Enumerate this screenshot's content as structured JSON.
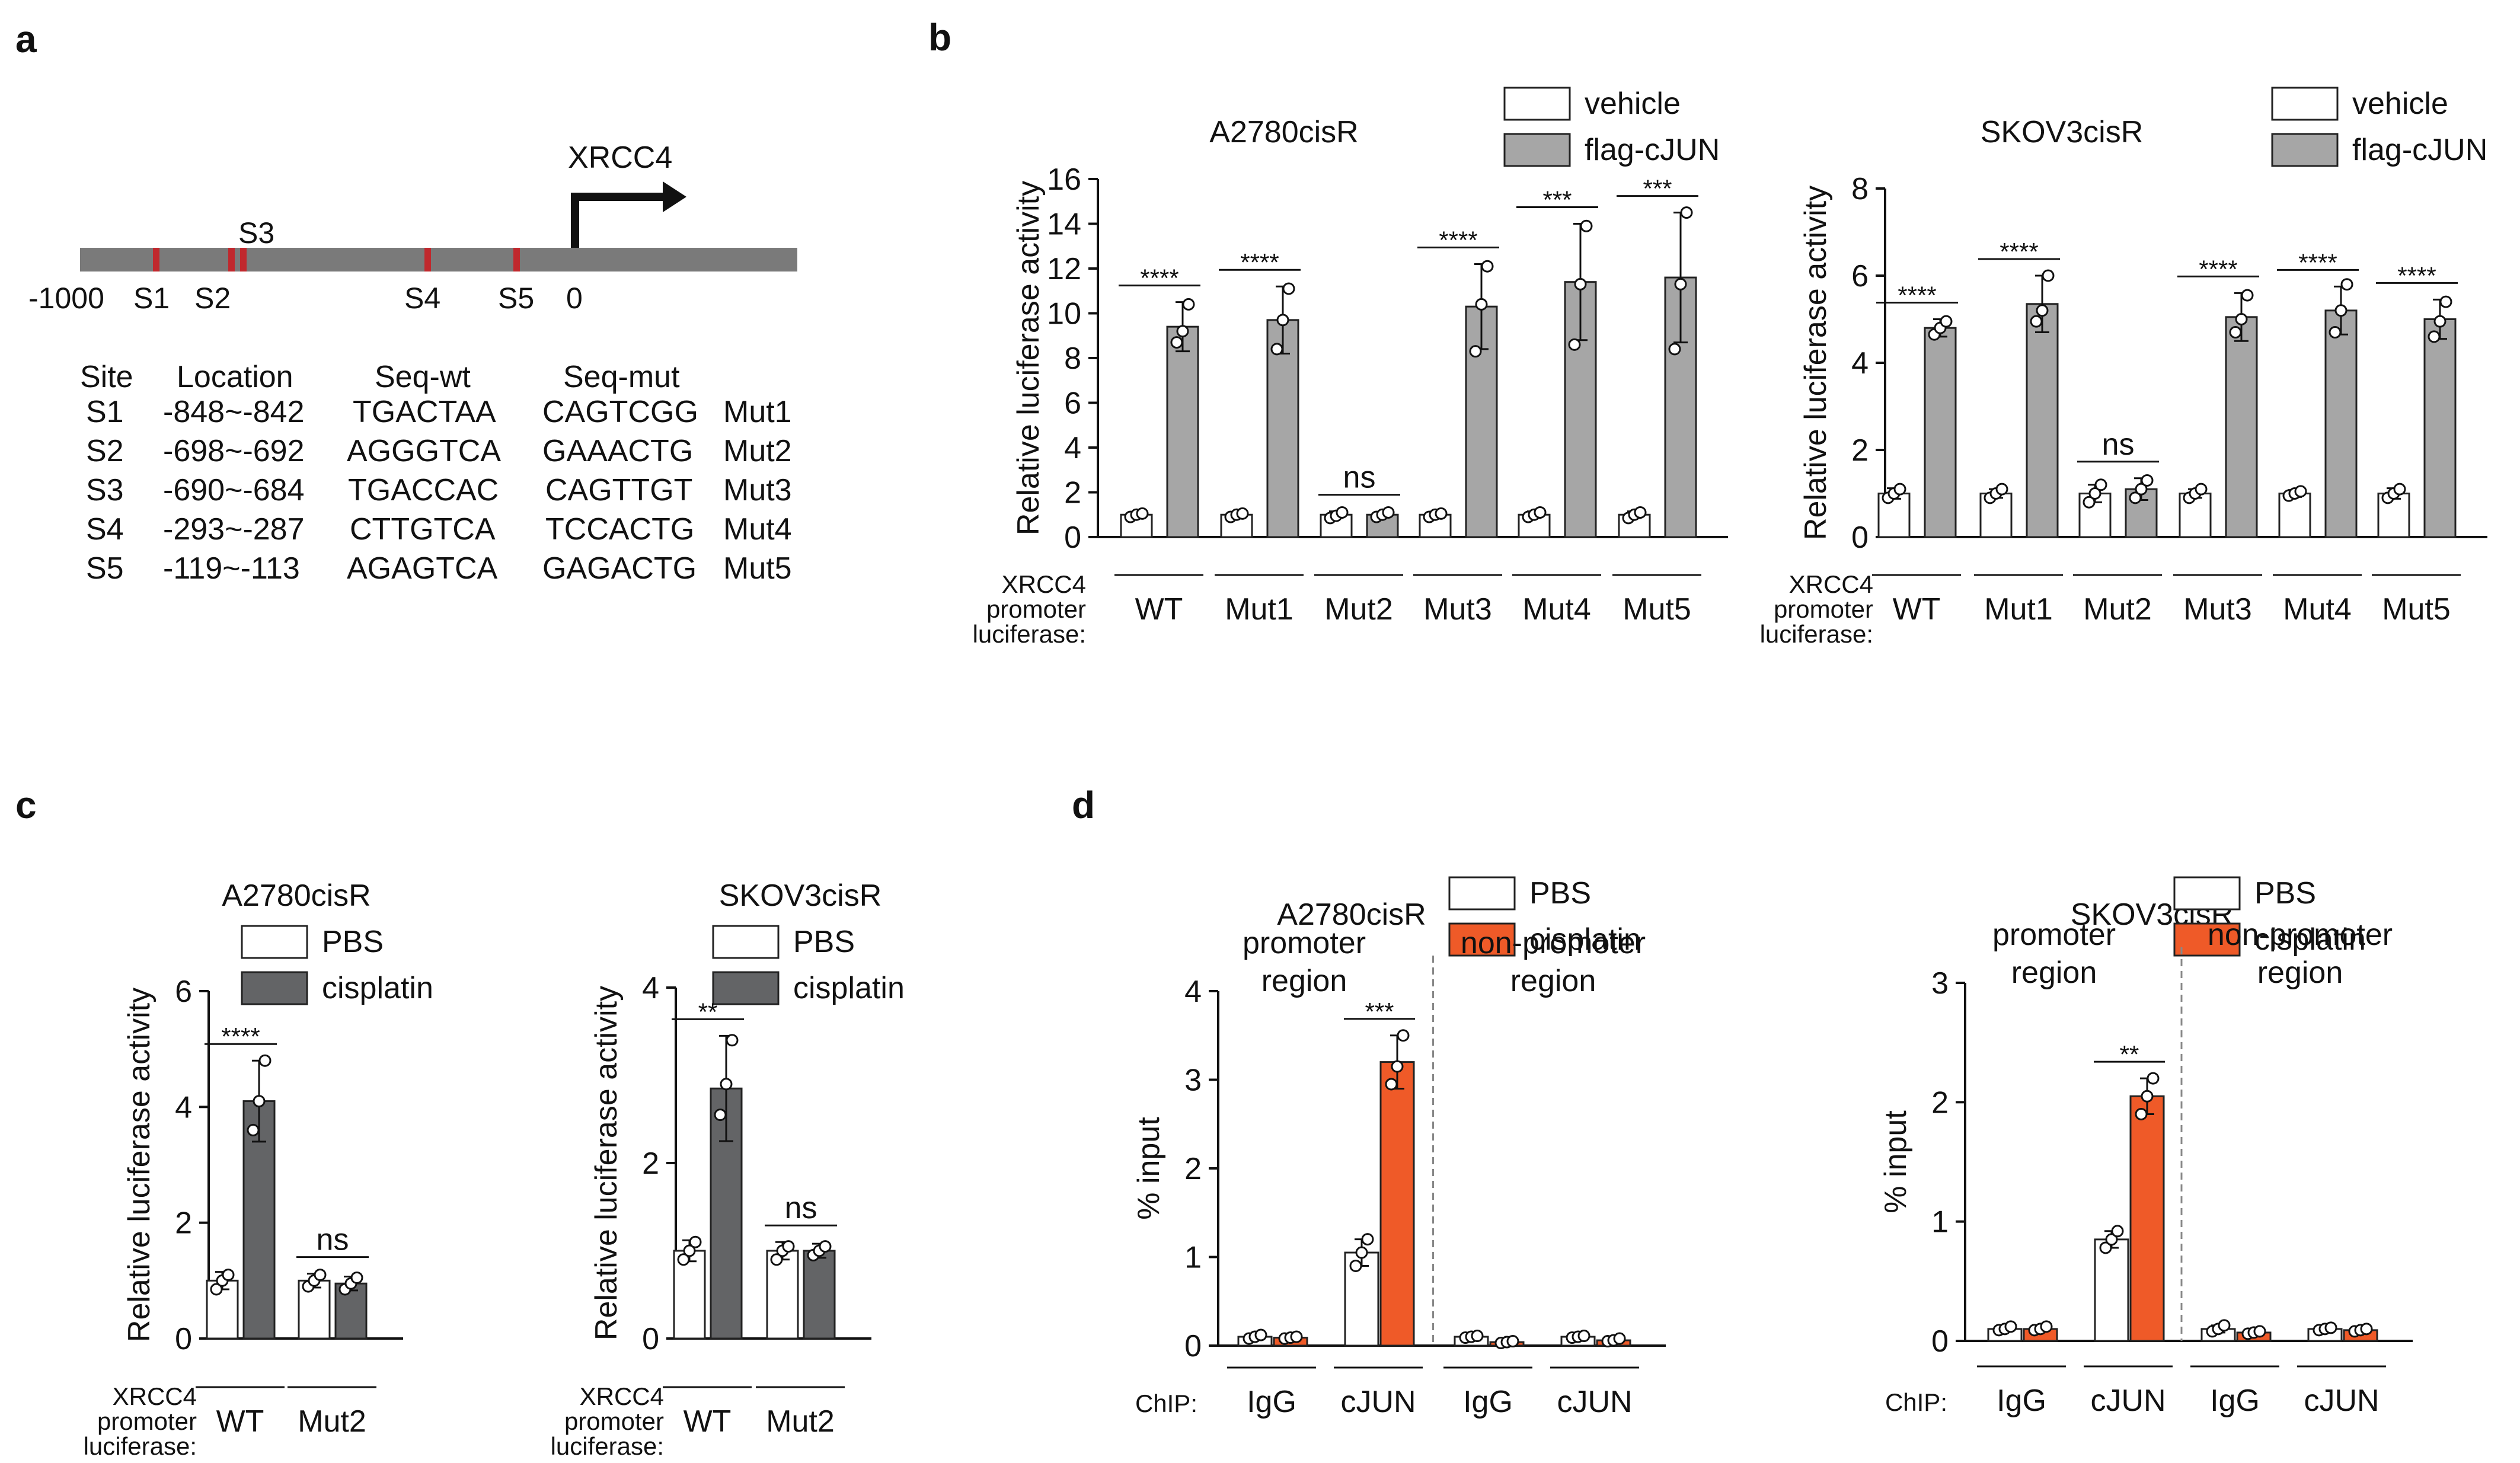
{
  "colors": {
    "promoter_bar": "#7a7a7a",
    "site_mark": "#c0282d",
    "mut_text": "#c0282d",
    "vehicle": "#ffffff",
    "flag": "#a6a6a6",
    "pbs": "#ffffff",
    "cisplatin_c": "#636466",
    "cisplatin_d": "#ef5a28",
    "outline": "#222222",
    "divider": "#888888"
  },
  "panel_a": {
    "letter": "a",
    "gene": "XRCC4",
    "axis_labels": [
      "-1000",
      "S1",
      "S2",
      "S3",
      "S4",
      "S5",
      "0"
    ],
    "table": {
      "headers": [
        "Site",
        "Location",
        "Seq-wt",
        "Seq-mut"
      ],
      "rows": [
        {
          "site": "S1",
          "location": "-848~-842",
          "wt": "TGACTAA",
          "mut": "CAGTCGG",
          "label": "Mut1"
        },
        {
          "site": "S2",
          "location": "-698~-692",
          "wt": "AGGGTCA",
          "mut": "GAAACTG",
          "label": "Mut2"
        },
        {
          "site": "S3",
          "location": "-690~-684",
          "wt": "TGACCAC",
          "mut": "CAGTTGT",
          "label": "Mut3"
        },
        {
          "site": "S4",
          "location": "-293~-287",
          "wt": "CTTGTCA",
          "mut": "TCCACTG",
          "label": "Mut4"
        },
        {
          "site": "S5",
          "location": "-119~-113",
          "wt": "AGAGTCA",
          "mut": "GAGACTG",
          "label": "Mut5"
        }
      ]
    }
  },
  "chart_data": [
    {
      "id": "b1",
      "panel": "b",
      "type": "bar",
      "title": "A2780cisR",
      "ylabel": "Relative luciferase activity",
      "ylim": [
        0,
        16
      ],
      "yticks": [
        0,
        2,
        4,
        6,
        8,
        10,
        12,
        14,
        16
      ],
      "row_label": [
        "XRCC4",
        "promoter",
        "luciferase:"
      ],
      "categories": [
        "WT",
        "Mut1",
        "Mut2",
        "Mut3",
        "Mut4",
        "Mut5"
      ],
      "series": [
        {
          "name": "vehicle",
          "values": [
            1.0,
            1.0,
            1.0,
            1.0,
            1.0,
            1.0
          ],
          "errors": [
            0.1,
            0.1,
            0.15,
            0.1,
            0.15,
            0.15
          ],
          "points": [
            [
              0.9,
              1.0,
              1.05
            ],
            [
              0.9,
              1.0,
              1.05
            ],
            [
              0.85,
              0.95,
              1.1
            ],
            [
              0.9,
              1.0,
              1.05
            ],
            [
              0.9,
              1.0,
              1.1
            ],
            [
              0.85,
              1.0,
              1.1
            ]
          ]
        },
        {
          "name": "flag-cJUN",
          "values": [
            9.4,
            9.7,
            1.0,
            10.3,
            11.4,
            11.6
          ],
          "errors": [
            1.1,
            1.5,
            0.12,
            1.9,
            2.6,
            2.9
          ],
          "points": [
            [
              8.7,
              9.2,
              10.4
            ],
            [
              8.4,
              9.7,
              11.1
            ],
            [
              0.9,
              1.0,
              1.1
            ],
            [
              8.3,
              10.4,
              12.1
            ],
            [
              8.6,
              11.3,
              13.9
            ],
            [
              8.4,
              11.3,
              14.5
            ]
          ]
        }
      ],
      "significance": [
        "****",
        "****",
        "ns",
        "****",
        "***",
        "***"
      ]
    },
    {
      "id": "b2",
      "panel": "b",
      "type": "bar",
      "title": "SKOV3cisR",
      "ylabel": "Relative luciferase activity",
      "ylim": [
        0,
        8
      ],
      "yticks": [
        0,
        2,
        4,
        6,
        8
      ],
      "row_label": [
        "XRCC4",
        "promoter",
        "luciferase:"
      ],
      "categories": [
        "WT",
        "Mut1",
        "Mut2",
        "Mut3",
        "Mut4",
        "Mut5"
      ],
      "series": [
        {
          "name": "vehicle",
          "values": [
            1.0,
            1.0,
            1.0,
            1.0,
            1.0,
            1.0
          ],
          "errors": [
            0.12,
            0.1,
            0.2,
            0.1,
            0.08,
            0.12
          ],
          "points": [
            [
              0.9,
              1.0,
              1.1
            ],
            [
              0.9,
              1.0,
              1.1
            ],
            [
              0.8,
              1.0,
              1.2
            ],
            [
              0.9,
              1.0,
              1.1
            ],
            [
              0.95,
              1.0,
              1.05
            ],
            [
              0.9,
              1.0,
              1.1
            ]
          ]
        },
        {
          "name": "flag-cJUN",
          "values": [
            4.8,
            5.35,
            1.1,
            5.05,
            5.2,
            5.0
          ],
          "errors": [
            0.2,
            0.65,
            0.25,
            0.55,
            0.55,
            0.45
          ],
          "points": [
            [
              4.65,
              4.8,
              4.95
            ],
            [
              4.95,
              5.2,
              6.0
            ],
            [
              0.9,
              1.1,
              1.3
            ],
            [
              4.7,
              5.0,
              5.55
            ],
            [
              4.7,
              5.2,
              5.8
            ],
            [
              4.6,
              4.95,
              5.4
            ]
          ]
        }
      ],
      "significance": [
        "****",
        "****",
        "ns",
        "****",
        "****",
        "****"
      ]
    },
    {
      "id": "c1",
      "panel": "c",
      "type": "bar",
      "title": "A2780cisR",
      "ylabel": "Relative luciferase activity",
      "ylim": [
        0,
        6
      ],
      "yticks": [
        0,
        2,
        4,
        6
      ],
      "row_label": [
        "XRCC4",
        "promoter",
        "luciferase:"
      ],
      "categories": [
        "WT",
        "Mut2"
      ],
      "series": [
        {
          "name": "PBS",
          "values": [
            1.0,
            1.0
          ],
          "errors": [
            0.15,
            0.12
          ],
          "points": [
            [
              0.85,
              1.0,
              1.1
            ],
            [
              0.9,
              1.0,
              1.1
            ]
          ]
        },
        {
          "name": "cisplatin",
          "values": [
            4.1,
            0.95
          ],
          "errors": [
            0.7,
            0.12
          ],
          "points": [
            [
              3.6,
              4.1,
              4.8
            ],
            [
              0.85,
              0.95,
              1.05
            ]
          ]
        }
      ],
      "significance": [
        "****",
        "ns"
      ]
    },
    {
      "id": "c2",
      "panel": "c",
      "type": "bar",
      "title": "SKOV3cisR",
      "ylabel": "Relative luciferase activity",
      "ylim": [
        0,
        4
      ],
      "yticks": [
        0,
        2,
        4
      ],
      "row_label": [
        "XRCC4",
        "promoter",
        "luciferase:"
      ],
      "categories": [
        "WT",
        "Mut2"
      ],
      "series": [
        {
          "name": "PBS",
          "values": [
            1.0,
            1.0
          ],
          "errors": [
            0.12,
            0.1
          ],
          "points": [
            [
              0.9,
              1.0,
              1.1
            ],
            [
              0.9,
              1.0,
              1.05
            ]
          ]
        },
        {
          "name": "cisplatin",
          "values": [
            2.85,
            1.0
          ],
          "errors": [
            0.6,
            0.08
          ],
          "points": [
            [
              2.55,
              2.9,
              3.4
            ],
            [
              0.95,
              1.0,
              1.05
            ]
          ]
        }
      ],
      "significance": [
        "**",
        "ns"
      ]
    },
    {
      "id": "d1",
      "panel": "d",
      "type": "bar",
      "title": "A2780cisR",
      "ylabel": "% input",
      "ylim": [
        0,
        4
      ],
      "yticks": [
        0,
        1,
        2,
        3,
        4
      ],
      "row_label": [
        "ChIP:"
      ],
      "region_labels": [
        "promoter region",
        "non-promoter region"
      ],
      "categories": [
        "IgG",
        "cJUN",
        "IgG",
        "cJUN"
      ],
      "series": [
        {
          "name": "PBS",
          "values": [
            0.1,
            1.05,
            0.1,
            0.1
          ],
          "errors": [
            0.03,
            0.15,
            0.02,
            0.02
          ],
          "points": [
            [
              0.08,
              0.1,
              0.12
            ],
            [
              0.9,
              1.05,
              1.2
            ],
            [
              0.09,
              0.1,
              0.11
            ],
            [
              0.09,
              0.1,
              0.11
            ]
          ]
        },
        {
          "name": "cisplatin",
          "values": [
            0.09,
            3.2,
            0.04,
            0.06
          ],
          "errors": [
            0.02,
            0.3,
            0.01,
            0.02
          ],
          "points": [
            [
              0.08,
              0.09,
              0.1
            ],
            [
              2.95,
              3.15,
              3.5
            ],
            [
              0.03,
              0.04,
              0.05
            ],
            [
              0.05,
              0.06,
              0.08
            ]
          ]
        }
      ],
      "significance": [
        "",
        "***",
        "",
        ""
      ]
    },
    {
      "id": "d2",
      "panel": "d",
      "type": "bar",
      "title": "SKOV3cisR",
      "ylabel": "% input",
      "ylim": [
        0,
        3
      ],
      "yticks": [
        0,
        1,
        2,
        3
      ],
      "row_label": [
        "ChIP:"
      ],
      "region_labels": [
        "promoter region",
        "non-promoter region"
      ],
      "categories": [
        "IgG",
        "cJUN",
        "IgG",
        "cJUN"
      ],
      "series": [
        {
          "name": "PBS",
          "values": [
            0.1,
            0.85,
            0.1,
            0.1
          ],
          "errors": [
            0.02,
            0.07,
            0.03,
            0.02
          ],
          "points": [
            [
              0.09,
              0.1,
              0.12
            ],
            [
              0.78,
              0.85,
              0.92
            ],
            [
              0.08,
              0.1,
              0.13
            ],
            [
              0.09,
              0.1,
              0.11
            ]
          ]
        },
        {
          "name": "cisplatin",
          "values": [
            0.1,
            2.05,
            0.07,
            0.09
          ],
          "errors": [
            0.02,
            0.15,
            0.02,
            0.01
          ],
          "points": [
            [
              0.09,
              0.1,
              0.12
            ],
            [
              1.9,
              2.05,
              2.2
            ],
            [
              0.06,
              0.07,
              0.08
            ],
            [
              0.08,
              0.09,
              0.1
            ]
          ]
        }
      ],
      "significance": [
        "",
        "**",
        "",
        ""
      ]
    }
  ],
  "panel_letters": {
    "b": "b",
    "c": "c",
    "d": "d"
  }
}
